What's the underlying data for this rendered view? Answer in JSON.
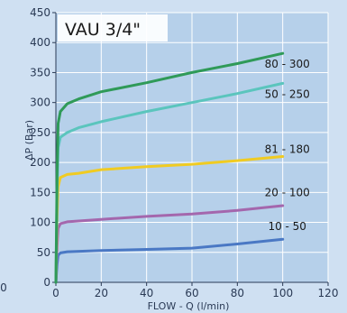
{
  "chart_data": {
    "type": "line",
    "title": "VAU 3/4\"",
    "xlabel": "FLOW - Q (l/min)",
    "ylabel": "ΔP (Bar)",
    "xlim": [
      0,
      120
    ],
    "ylim": [
      0,
      450
    ],
    "x_ticks": [
      "0",
      "20",
      "40",
      "60",
      "80",
      "100",
      "120"
    ],
    "y_ticks": [
      "0",
      "50",
      "100",
      "150",
      "200",
      "250",
      "300",
      "350",
      "400",
      "450"
    ],
    "left_edge_label": "0",
    "grid": true,
    "series": [
      {
        "name": "10 - 50",
        "color": "#4a78c4",
        "points": [
          [
            0,
            0
          ],
          [
            0.5,
            30
          ],
          [
            1,
            45
          ],
          [
            2,
            49
          ],
          [
            5,
            51
          ],
          [
            20,
            53
          ],
          [
            40,
            55
          ],
          [
            60,
            57
          ],
          [
            80,
            64
          ],
          [
            100,
            72
          ]
        ]
      },
      {
        "name": "20 - 100",
        "color": "#a467ad",
        "points": [
          [
            0,
            0
          ],
          [
            0.5,
            60
          ],
          [
            1,
            90
          ],
          [
            2,
            98
          ],
          [
            5,
            101
          ],
          [
            20,
            105
          ],
          [
            40,
            110
          ],
          [
            60,
            114
          ],
          [
            80,
            120
          ],
          [
            100,
            128
          ]
        ]
      },
      {
        "name": "81 - 180",
        "color": "#f0cb22",
        "points": [
          [
            0,
            0
          ],
          [
            0.5,
            110
          ],
          [
            1,
            160
          ],
          [
            2,
            175
          ],
          [
            5,
            180
          ],
          [
            10,
            182
          ],
          [
            20,
            188
          ],
          [
            40,
            193
          ],
          [
            60,
            197
          ],
          [
            80,
            203
          ],
          [
            100,
            210
          ]
        ]
      },
      {
        "name": "50 - 250",
        "color": "#5bc5bd",
        "points": [
          [
            0,
            0
          ],
          [
            0.5,
            150
          ],
          [
            1,
            225
          ],
          [
            2,
            242
          ],
          [
            5,
            250
          ],
          [
            10,
            258
          ],
          [
            20,
            268
          ],
          [
            40,
            285
          ],
          [
            60,
            300
          ],
          [
            80,
            315
          ],
          [
            100,
            332
          ]
        ]
      },
      {
        "name": "80 - 300",
        "color": "#2f9a58",
        "points": [
          [
            0,
            0
          ],
          [
            0.5,
            180
          ],
          [
            1,
            265
          ],
          [
            2,
            285
          ],
          [
            5,
            298
          ],
          [
            10,
            306
          ],
          [
            20,
            318
          ],
          [
            40,
            333
          ],
          [
            60,
            350
          ],
          [
            80,
            365
          ],
          [
            100,
            382
          ]
        ]
      }
    ],
    "labels": [
      {
        "series": 4,
        "text": "80 - 300",
        "at": [
          102,
          358
        ]
      },
      {
        "series": 3,
        "text": "50 - 250",
        "at": [
          102,
          308
        ]
      },
      {
        "series": 2,
        "text": "81 - 180",
        "at": [
          102,
          216
        ]
      },
      {
        "series": 1,
        "text": "20 - 100",
        "at": [
          102,
          144
        ]
      },
      {
        "series": 0,
        "text": "10 - 50",
        "at": [
          102,
          87
        ]
      }
    ]
  }
}
